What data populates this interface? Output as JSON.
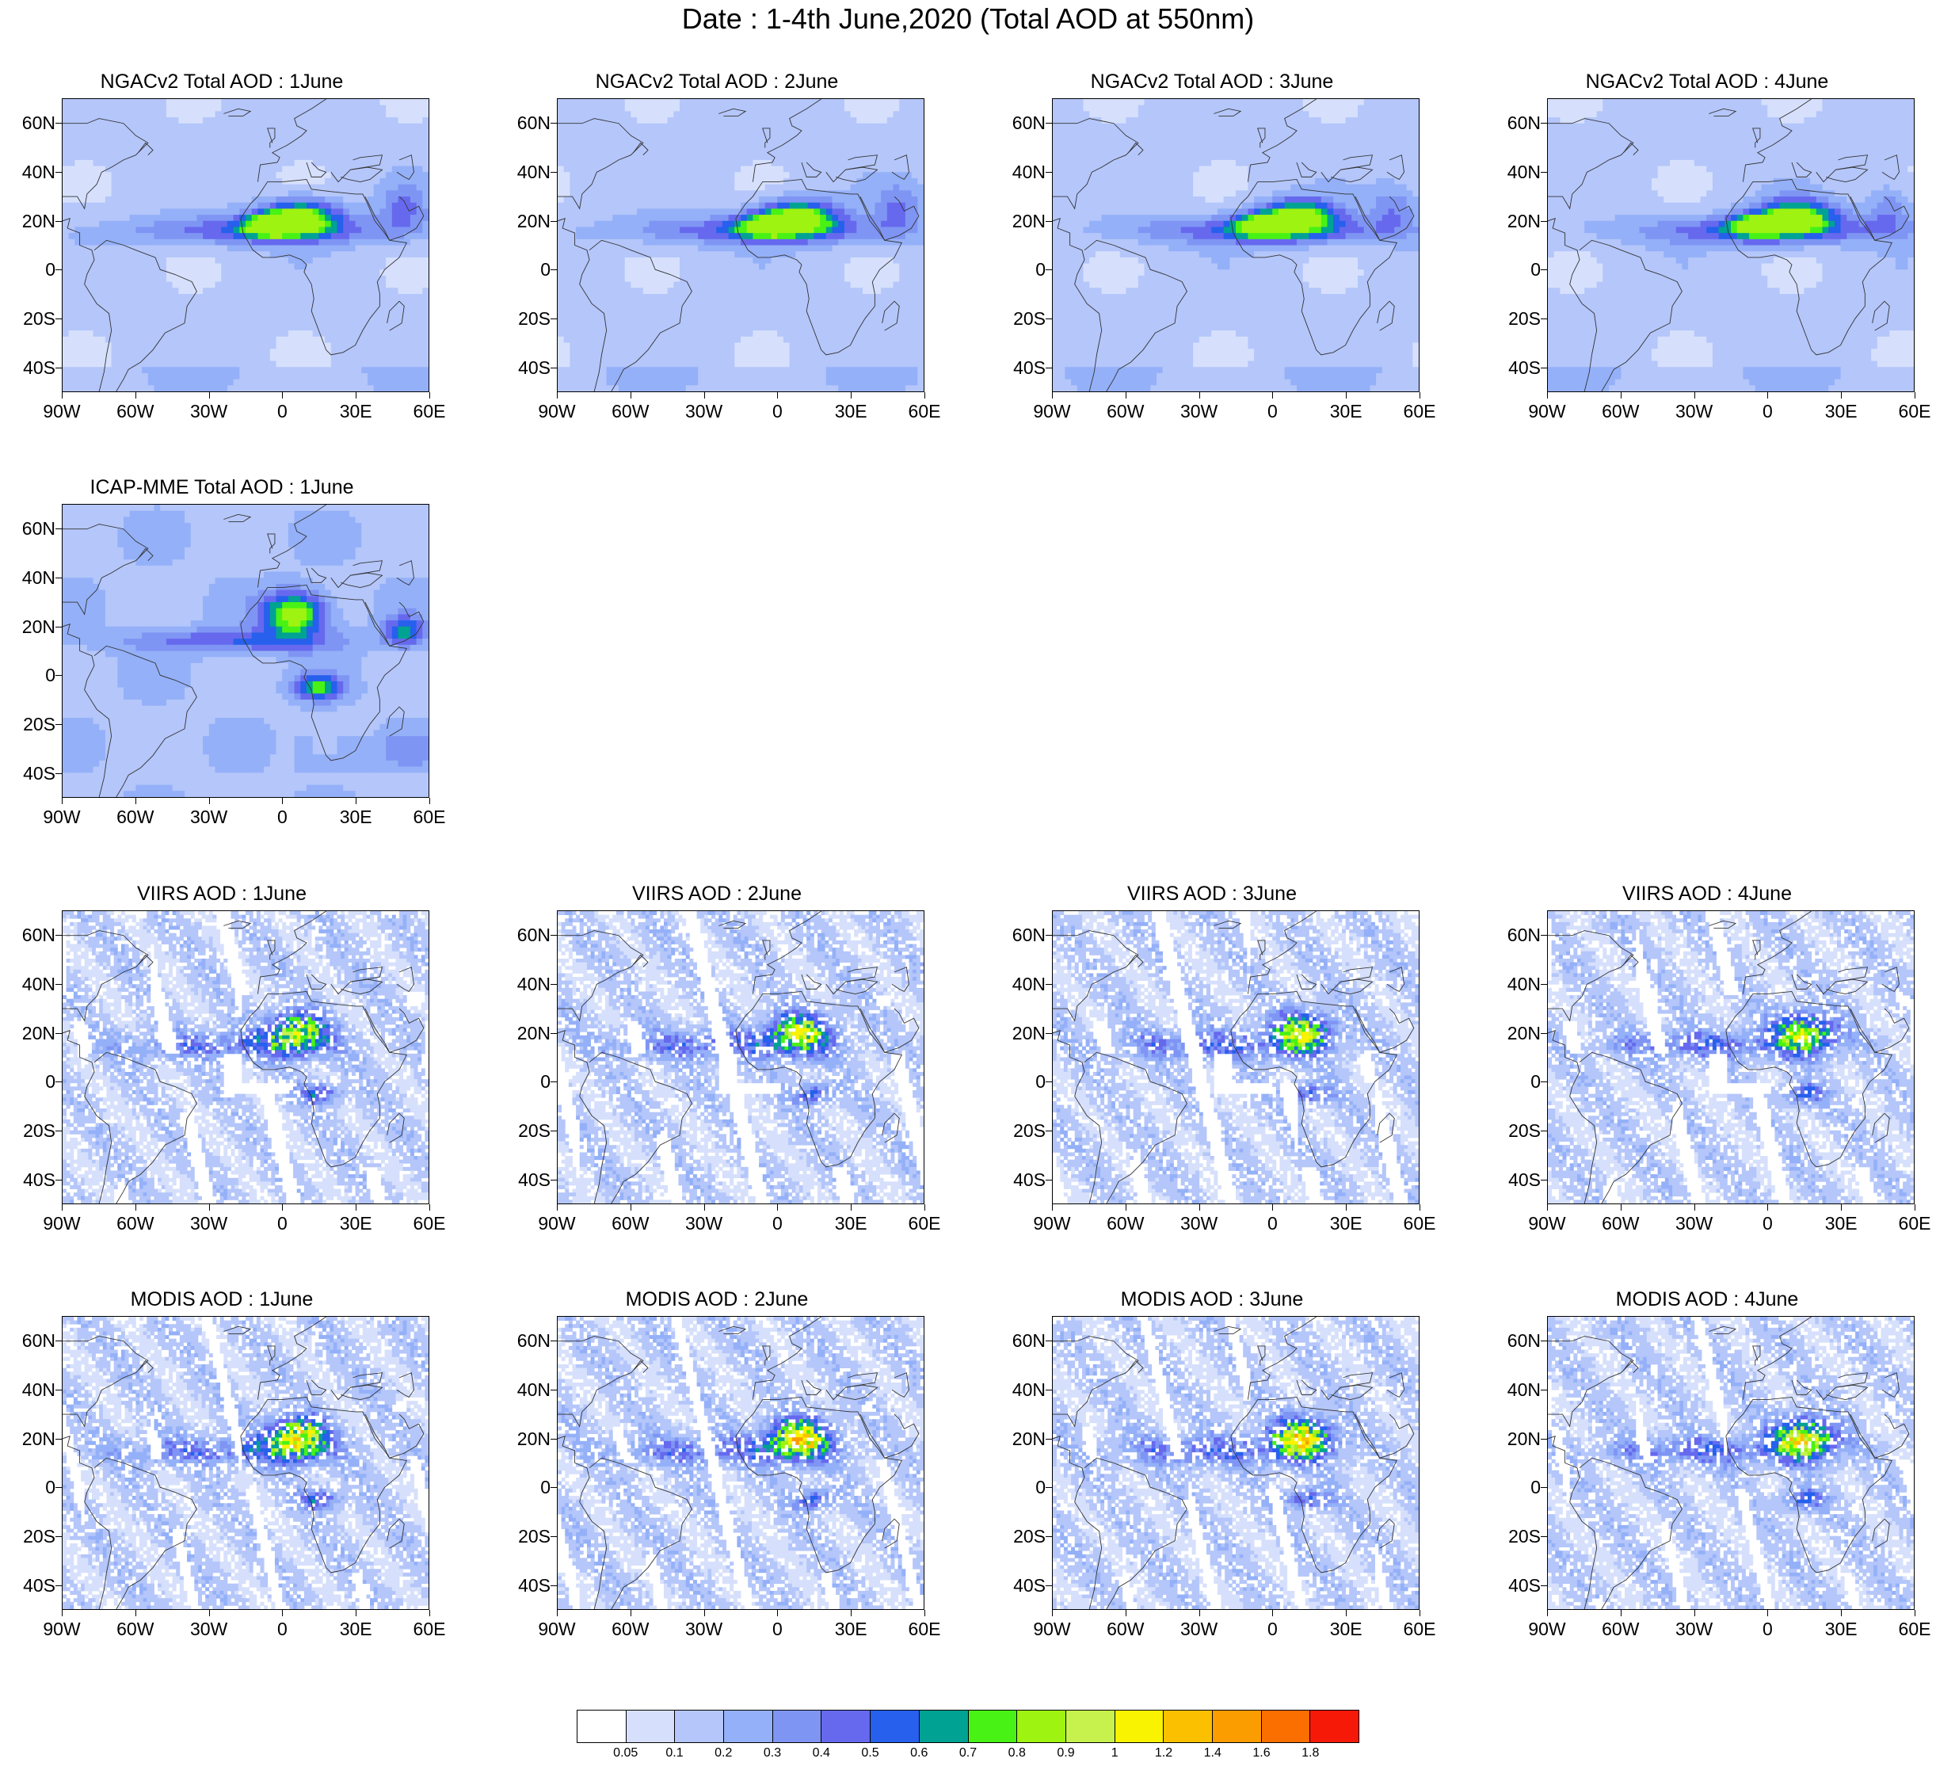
{
  "title": "Date : 1-4th June,2020 (Total AOD at 550nm)",
  "colors": {
    "levels": [
      "#ffffff",
      "#d6e0fc",
      "#b4c6fa",
      "#94b0f8",
      "#7f95f4",
      "#6669ee",
      "#2660ec",
      "#00a293",
      "#48f215",
      "#9ff311",
      "#c7f14d",
      "#f9f200",
      "#fbc000",
      "#fb9c00",
      "#fb6e00",
      "#f61907"
    ]
  },
  "panels": [
    {
      "id": "ngac-1",
      "title": "NGACv2 Total AOD : 1June",
      "row": 0,
      "col": 0,
      "source": "NGACv2",
      "day": 1
    },
    {
      "id": "ngac-2",
      "title": "NGACv2 Total AOD : 2June",
      "row": 0,
      "col": 1,
      "source": "NGACv2",
      "day": 2
    },
    {
      "id": "ngac-3",
      "title": "NGACv2 Total AOD : 3June",
      "row": 0,
      "col": 2,
      "source": "NGACv2",
      "day": 3
    },
    {
      "id": "ngac-4",
      "title": "NGACv2 Total AOD : 4June",
      "row": 0,
      "col": 3,
      "source": "NGACv2",
      "day": 4
    },
    {
      "id": "icap-1",
      "title": "ICAP-MME Total AOD : 1June",
      "row": 1,
      "col": 0,
      "source": "ICAP-MME",
      "day": 1
    },
    {
      "id": "viirs-1",
      "title": "VIIRS AOD : 1June",
      "row": 2,
      "col": 0,
      "source": "VIIRS",
      "day": 1
    },
    {
      "id": "viirs-2",
      "title": "VIIRS AOD : 2June",
      "row": 2,
      "col": 1,
      "source": "VIIRS",
      "day": 2
    },
    {
      "id": "viirs-3",
      "title": "VIIRS AOD : 3June",
      "row": 2,
      "col": 2,
      "source": "VIIRS",
      "day": 3
    },
    {
      "id": "viirs-4",
      "title": "VIIRS AOD : 4June",
      "row": 2,
      "col": 3,
      "source": "VIIRS",
      "day": 4
    },
    {
      "id": "modis-1",
      "title": "MODIS AOD : 1June",
      "row": 3,
      "col": 0,
      "source": "MODIS",
      "day": 1
    },
    {
      "id": "modis-2",
      "title": "MODIS AOD : 2June",
      "row": 3,
      "col": 1,
      "source": "MODIS",
      "day": 2
    },
    {
      "id": "modis-3",
      "title": "MODIS AOD : 3June",
      "row": 3,
      "col": 2,
      "source": "MODIS",
      "day": 3
    },
    {
      "id": "modis-4",
      "title": "MODIS AOD : 4June",
      "row": 3,
      "col": 3,
      "source": "MODIS",
      "day": 4
    }
  ],
  "chart_data": {
    "type": "heatmap",
    "title": "Date : 1-4th June,2020 (Total AOD at 550nm)",
    "variable": "Total AOD at 550nm",
    "xlim": [
      -90,
      60
    ],
    "ylim": [
      -50,
      70
    ],
    "xtick_values": [
      -90,
      -60,
      -30,
      0,
      30,
      60
    ],
    "xtick_labels": [
      "90W",
      "60W",
      "30W",
      "0",
      "30E",
      "60E"
    ],
    "ytick_values": [
      60,
      40,
      20,
      0,
      -20,
      -40
    ],
    "ytick_labels": [
      "60N",
      "40N",
      "20N",
      "0",
      "20S",
      "40S"
    ],
    "colorbar_labels": [
      "0.05",
      "0.1",
      "0.2",
      "0.3",
      "0.4",
      "0.5",
      "0.6",
      "0.7",
      "0.8",
      "0.9",
      "1",
      "1.2",
      "1.4",
      "1.6",
      "1.8"
    ],
    "colorbar_levels": [
      0.05,
      0.1,
      0.2,
      0.3,
      0.4,
      0.5,
      0.6,
      0.7,
      0.8,
      0.9,
      1,
      1.2,
      1.4,
      1.6,
      1.8
    ],
    "features": {
      "ngac_dust_max_level": 9,
      "icap_dust_max_level": 9,
      "viirs_dust_max_level": 11,
      "modis_dust_max_level": 15
    }
  }
}
